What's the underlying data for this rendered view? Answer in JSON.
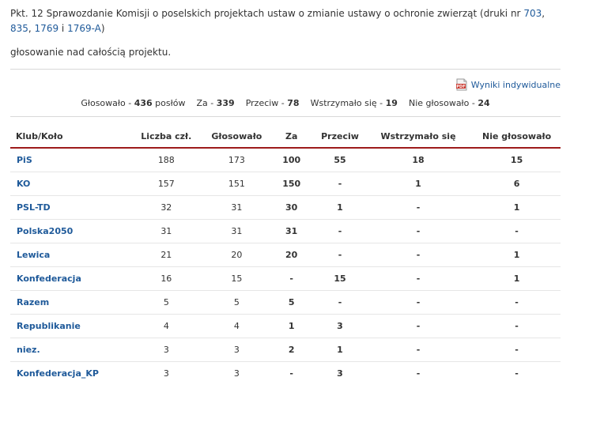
{
  "title": {
    "text": "Pkt. 12 Sprawozdanie Komisji o poselskich projektach ustaw o zmianie ustawy o ochronie zwierząt (druki nr ",
    "links": [
      "703",
      "835",
      "1769",
      "1769-A"
    ],
    "sep": ", ",
    "sep_and": " i ",
    "end": ")"
  },
  "description": "głosowanie nad całością projektu.",
  "links": {
    "individual_results": "Wyniki indywidualne"
  },
  "icons": {
    "pdf": "pdf-icon"
  },
  "summary": {
    "glosowalo_label": "Głosowało - ",
    "glosowalo": "436",
    "poslow": " posłów",
    "za_label": "Za - ",
    "za": "339",
    "przeciw_label": "Przeciw - ",
    "przeciw": "78",
    "wstrzymalo_label": "Wstrzymało się - ",
    "wstrzymalo": "19",
    "nie_label": "Nie głosowało - ",
    "nie": "24"
  },
  "table": {
    "headers": [
      "Klub/Koło",
      "Liczba czł.",
      "Głosowało",
      "Za",
      "Przeciw",
      "Wstrzymało się",
      "Nie głosowało"
    ],
    "rows": [
      [
        "PiS",
        "188",
        "173",
        "100",
        "55",
        "18",
        "15"
      ],
      [
        "KO",
        "157",
        "151",
        "150",
        "-",
        "1",
        "6"
      ],
      [
        "PSL-TD",
        "32",
        "31",
        "30",
        "1",
        "-",
        "1"
      ],
      [
        "Polska2050",
        "31",
        "31",
        "31",
        "-",
        "-",
        "-"
      ],
      [
        "Lewica",
        "21",
        "20",
        "20",
        "-",
        "-",
        "1"
      ],
      [
        "Konfederacja",
        "16",
        "15",
        "-",
        "15",
        "-",
        "1"
      ],
      [
        "Razem",
        "5",
        "5",
        "5",
        "-",
        "-",
        "-"
      ],
      [
        "Republikanie",
        "4",
        "4",
        "1",
        "3",
        "-",
        "-"
      ],
      [
        "niez.",
        "3",
        "3",
        "2",
        "1",
        "-",
        "-"
      ],
      [
        "Konfederacja_KP",
        "3",
        "3",
        "-",
        "3",
        "-",
        "-"
      ]
    ]
  },
  "colors": {
    "link": "#1f5a9a",
    "header_rule": "#9e1b1b",
    "pdf_red": "#c8342b"
  }
}
